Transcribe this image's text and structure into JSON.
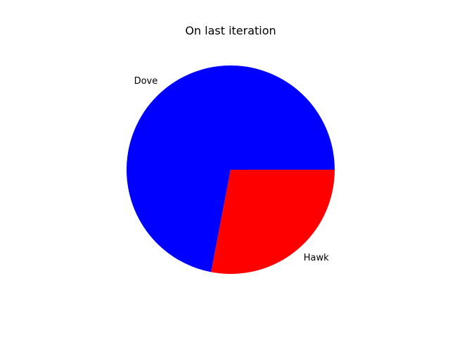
{
  "chart_data": {
    "type": "pie",
    "title": "On last iteration",
    "slices": [
      {
        "label": "Dove",
        "value": 72,
        "color": "#0000ff"
      },
      {
        "label": "Hawk",
        "value": 28,
        "color": "#ff0000"
      }
    ],
    "start_angle_deg": 0,
    "direction": "counterclockwise",
    "legend": "none",
    "grid": false
  }
}
